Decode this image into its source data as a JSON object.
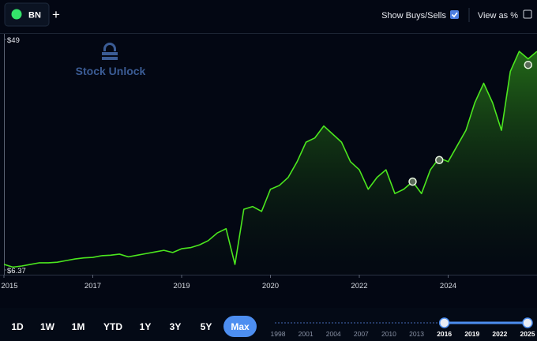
{
  "toolbar": {
    "ticker": "BN",
    "show_buys_sells": "Show Buys/Sells",
    "show_buys_sells_checked": true,
    "view_as_pct": "View as %",
    "view_as_pct_checked": false
  },
  "watermark": "Stock Unlock",
  "chart_data": {
    "type": "line",
    "color": "#4be61e",
    "categories": [
      "2015",
      null,
      null,
      null,
      null,
      null,
      null,
      null,
      null,
      null,
      "2017",
      null,
      null,
      null,
      null,
      null,
      null,
      null,
      null,
      null,
      "2019",
      null,
      null,
      null,
      null,
      null,
      null,
      null,
      null,
      null,
      "2020",
      null,
      null,
      null,
      null,
      null,
      null,
      null,
      null,
      null,
      "2022",
      null,
      null,
      null,
      null,
      null,
      null,
      null,
      null,
      null,
      "2024",
      null,
      null,
      null,
      null,
      null,
      null,
      null,
      null,
      null,
      null
    ],
    "values": [
      7.4,
      6.9,
      7.1,
      7.4,
      7.7,
      7.7,
      7.8,
      8.1,
      8.4,
      8.6,
      8.7,
      9.0,
      9.1,
      9.3,
      8.8,
      9.1,
      9.4,
      9.7,
      10.0,
      9.6,
      10.3,
      10.5,
      11.0,
      11.8,
      13.2,
      14.0,
      7.4,
      17.6,
      18.1,
      17.2,
      21.3,
      22.0,
      23.5,
      26.4,
      30.0,
      30.8,
      33.0,
      31.5,
      30.0,
      26.4,
      24.9,
      21.3,
      23.5,
      24.9,
      20.5,
      21.3,
      22.7,
      20.5,
      24.9,
      27.1,
      26.4,
      29.3,
      32.2,
      37.3,
      40.9,
      37.3,
      32.2,
      43.1,
      46.8,
      45.4,
      46.8
    ],
    "markers": {
      "color": "#e8f5e0",
      "values": [
        null,
        null,
        null,
        null,
        null,
        null,
        null,
        null,
        null,
        null,
        null,
        null,
        null,
        null,
        null,
        null,
        null,
        null,
        null,
        null,
        null,
        null,
        null,
        null,
        null,
        null,
        null,
        null,
        null,
        null,
        null,
        null,
        null,
        null,
        null,
        null,
        null,
        null,
        null,
        null,
        null,
        null,
        null,
        null,
        null,
        null,
        22.7,
        null,
        null,
        26.7,
        null,
        null,
        null,
        null,
        null,
        null,
        null,
        null,
        null,
        44.3,
        null
      ]
    },
    "ylim": [
      6.37,
      49
    ],
    "yticks": [
      {
        "value": 49,
        "label": "$49"
      },
      {
        "value": 6.37,
        "label": "$6.37"
      }
    ]
  },
  "range_selector": {
    "buttons": [
      "1D",
      "1W",
      "1M",
      "YTD",
      "1Y",
      "3Y",
      "5Y",
      "Max"
    ],
    "active": 7,
    "years": [
      1998,
      2001,
      2004,
      2007,
      2010,
      2013,
      2016,
      2019,
      2022,
      2025
    ],
    "start": 6,
    "end": 9
  }
}
